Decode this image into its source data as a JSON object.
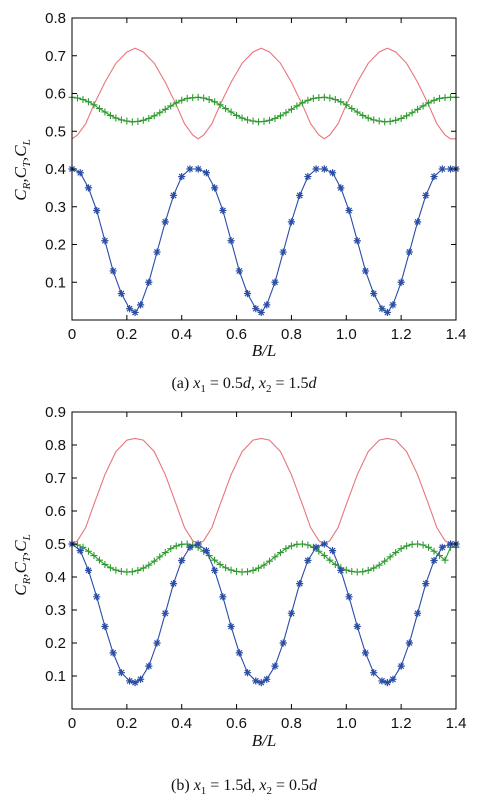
{
  "chart_data": [
    {
      "type": "line",
      "panel": "a",
      "caption": {
        "prefix": "(a) ",
        "x1": "x",
        "x1_sub": "1",
        "x1_val": " = 0.5",
        "x1_d": "d",
        "sep": ", ",
        "x2": "x",
        "x2_sub": "2",
        "x2_val": " = 1.5",
        "x2_d": "d"
      },
      "xlabel": "B/L",
      "ylabel": {
        "c1": "C",
        "s1": "R",
        "comma1": ",",
        "c2": "C",
        "s2": "T",
        "comma2": ",",
        "c3": "C",
        "s3": "L"
      },
      "xlim": [
        0,
        1.4
      ],
      "ylim": [
        0,
        0.8
      ],
      "xticks": [
        "0",
        "0.2",
        "0.4",
        "0.6",
        "0.8",
        "1.0",
        "1.2",
        "1.4"
      ],
      "xtick_values": [
        0,
        0.2,
        0.4,
        0.6,
        0.8,
        1.0,
        1.2,
        1.4
      ],
      "yticks": [
        "0.1",
        "0.2",
        "0.3",
        "0.4",
        "0.5",
        "0.6",
        "0.7",
        "0.8"
      ],
      "ytick_values": [
        0.1,
        0.2,
        0.3,
        0.4,
        0.5,
        0.6,
        0.7,
        0.8
      ],
      "period": 0.46,
      "series": [
        {
          "color": "#e8757a",
          "marker": "none",
          "x": [
            0,
            0.02,
            0.05,
            0.08,
            0.12,
            0.16,
            0.2,
            0.23,
            0.26,
            0.3,
            0.34,
            0.38,
            0.41,
            0.44,
            0.46,
            0.48,
            0.51,
            0.54,
            0.58,
            0.62,
            0.66,
            0.69,
            0.72,
            0.76,
            0.8,
            0.84,
            0.87,
            0.9,
            0.92,
            0.94,
            0.97,
            1.0,
            1.04,
            1.08,
            1.12,
            1.15,
            1.18,
            1.22,
            1.26,
            1.3,
            1.33,
            1.36,
            1.38,
            1.4
          ],
          "y": [
            0.48,
            0.49,
            0.52,
            0.57,
            0.63,
            0.68,
            0.71,
            0.72,
            0.71,
            0.68,
            0.63,
            0.57,
            0.52,
            0.49,
            0.48,
            0.49,
            0.52,
            0.57,
            0.63,
            0.68,
            0.71,
            0.72,
            0.71,
            0.68,
            0.63,
            0.57,
            0.52,
            0.49,
            0.48,
            0.49,
            0.52,
            0.57,
            0.63,
            0.68,
            0.71,
            0.72,
            0.71,
            0.68,
            0.63,
            0.57,
            0.52,
            0.49,
            0.48,
            0.48
          ]
        },
        {
          "color": "#2f9a2f",
          "marker": "plus",
          "x": [
            0,
            0.02,
            0.04,
            0.06,
            0.08,
            0.1,
            0.12,
            0.14,
            0.16,
            0.18,
            0.2,
            0.22,
            0.24,
            0.26,
            0.28,
            0.3,
            0.32,
            0.34,
            0.36,
            0.38,
            0.4,
            0.42,
            0.44,
            0.46,
            0.48,
            0.5,
            0.52,
            0.54,
            0.56,
            0.58,
            0.6,
            0.62,
            0.64,
            0.66,
            0.68,
            0.7,
            0.72,
            0.74,
            0.76,
            0.78,
            0.8,
            0.82,
            0.84,
            0.86,
            0.88,
            0.9,
            0.92,
            0.94,
            0.96,
            0.98,
            1.0,
            1.02,
            1.04,
            1.06,
            1.08,
            1.1,
            1.12,
            1.14,
            1.16,
            1.18,
            1.2,
            1.22,
            1.24,
            1.26,
            1.28,
            1.3,
            1.32,
            1.34,
            1.36,
            1.38,
            1.4
          ],
          "y": [
            0.59,
            0.588,
            0.584,
            0.578,
            0.57,
            0.56,
            0.551,
            0.542,
            0.535,
            0.53,
            0.527,
            0.525,
            0.526,
            0.529,
            0.534,
            0.541,
            0.549,
            0.558,
            0.567,
            0.575,
            0.582,
            0.587,
            0.589,
            0.59,
            0.588,
            0.584,
            0.578,
            0.57,
            0.56,
            0.551,
            0.542,
            0.535,
            0.53,
            0.527,
            0.525,
            0.526,
            0.529,
            0.534,
            0.541,
            0.549,
            0.558,
            0.567,
            0.575,
            0.582,
            0.587,
            0.589,
            0.59,
            0.588,
            0.584,
            0.578,
            0.57,
            0.56,
            0.551,
            0.542,
            0.535,
            0.53,
            0.527,
            0.525,
            0.526,
            0.529,
            0.534,
            0.541,
            0.549,
            0.558,
            0.567,
            0.575,
            0.582,
            0.587,
            0.589,
            0.59,
            0.59
          ]
        },
        {
          "color": "#2a4ea6",
          "marker": "star",
          "x": [
            0,
            0.03,
            0.06,
            0.09,
            0.12,
            0.15,
            0.18,
            0.21,
            0.23,
            0.25,
            0.28,
            0.31,
            0.34,
            0.37,
            0.4,
            0.43,
            0.46,
            0.49,
            0.52,
            0.55,
            0.58,
            0.61,
            0.64,
            0.67,
            0.69,
            0.71,
            0.74,
            0.77,
            0.8,
            0.83,
            0.86,
            0.89,
            0.92,
            0.95,
            0.98,
            1.01,
            1.04,
            1.07,
            1.1,
            1.13,
            1.15,
            1.17,
            1.2,
            1.23,
            1.26,
            1.29,
            1.32,
            1.35,
            1.38,
            1.4
          ],
          "y": [
            0.4,
            0.39,
            0.35,
            0.29,
            0.21,
            0.13,
            0.07,
            0.03,
            0.02,
            0.04,
            0.1,
            0.18,
            0.26,
            0.33,
            0.38,
            0.4,
            0.4,
            0.39,
            0.35,
            0.29,
            0.21,
            0.13,
            0.07,
            0.03,
            0.02,
            0.04,
            0.1,
            0.18,
            0.26,
            0.33,
            0.38,
            0.4,
            0.4,
            0.39,
            0.35,
            0.29,
            0.21,
            0.13,
            0.07,
            0.03,
            0.02,
            0.04,
            0.1,
            0.18,
            0.26,
            0.33,
            0.38,
            0.4,
            0.4,
            0.4
          ]
        }
      ]
    },
    {
      "type": "line",
      "panel": "b",
      "caption": {
        "prefix": "(b) ",
        "x1": "x",
        "x1_sub": "1",
        "x1_val": " = 1.5d",
        "x1_d": "",
        "sep": ", ",
        "x2": "x",
        "x2_sub": "2",
        "x2_val": " = 0.5",
        "x2_d": "d"
      },
      "xlabel": "B/L",
      "ylabel": {
        "c1": "C",
        "s1": "R",
        "comma1": ",",
        "c2": "C",
        "s2": "T",
        "comma2": ",",
        "c3": "C",
        "s3": "L"
      },
      "xlim": [
        0,
        1.4
      ],
      "ylim": [
        0,
        0.9
      ],
      "xticks": [
        "0",
        "0.2",
        "0.4",
        "0.6",
        "0.8",
        "1.0",
        "1.2",
        "1.4"
      ],
      "xtick_values": [
        0,
        0.2,
        0.4,
        0.6,
        0.8,
        1.0,
        1.2,
        1.4
      ],
      "yticks": [
        "0.1",
        "0.2",
        "0.3",
        "0.4",
        "0.5",
        "0.6",
        "0.7",
        "0.8",
        "0.9"
      ],
      "ytick_values": [
        0.1,
        0.2,
        0.3,
        0.4,
        0.5,
        0.6,
        0.7,
        0.8,
        0.9
      ],
      "series": [
        {
          "color": "#e8757a",
          "marker": "none",
          "x": [
            0,
            0.02,
            0.05,
            0.08,
            0.12,
            0.16,
            0.2,
            0.23,
            0.26,
            0.3,
            0.34,
            0.38,
            0.41,
            0.44,
            0.46,
            0.48,
            0.51,
            0.54,
            0.58,
            0.62,
            0.66,
            0.69,
            0.72,
            0.76,
            0.8,
            0.84,
            0.87,
            0.9,
            0.92,
            0.94,
            0.97,
            1.0,
            1.04,
            1.08,
            1.12,
            1.15,
            1.18,
            1.22,
            1.26,
            1.3,
            1.33,
            1.36,
            1.38,
            1.4
          ],
          "y": [
            0.5,
            0.51,
            0.55,
            0.62,
            0.71,
            0.78,
            0.815,
            0.82,
            0.815,
            0.78,
            0.71,
            0.62,
            0.55,
            0.51,
            0.5,
            0.51,
            0.55,
            0.62,
            0.71,
            0.78,
            0.815,
            0.82,
            0.815,
            0.78,
            0.71,
            0.62,
            0.55,
            0.51,
            0.5,
            0.51,
            0.55,
            0.62,
            0.71,
            0.78,
            0.815,
            0.82,
            0.815,
            0.78,
            0.71,
            0.62,
            0.55,
            0.51,
            0.5,
            0.5
          ]
        },
        {
          "color": "#2f9a2f",
          "marker": "plus",
          "x": [
            0,
            0.02,
            0.04,
            0.06,
            0.08,
            0.1,
            0.12,
            0.14,
            0.16,
            0.18,
            0.2,
            0.22,
            0.24,
            0.26,
            0.28,
            0.3,
            0.32,
            0.34,
            0.36,
            0.38,
            0.4,
            0.42,
            0.44,
            0.46,
            0.48,
            0.5,
            0.52,
            0.54,
            0.56,
            0.58,
            0.6,
            0.62,
            0.64,
            0.66,
            0.68,
            0.7,
            0.72,
            0.74,
            0.76,
            0.78,
            0.8,
            0.82,
            0.84,
            0.86,
            0.88,
            0.9,
            0.92,
            0.94,
            0.96,
            0.98,
            1.0,
            1.02,
            1.04,
            1.06,
            1.08,
            1.1,
            1.12,
            1.14,
            1.16,
            1.18,
            1.2,
            1.22,
            1.24,
            1.26,
            1.28,
            1.3,
            1.32,
            1.34,
            1.36,
            1.38,
            1.4
          ],
          "y": [
            0.5,
            0.497,
            0.49,
            0.478,
            0.465,
            0.451,
            0.438,
            0.428,
            0.421,
            0.417,
            0.415,
            0.416,
            0.42,
            0.427,
            0.436,
            0.448,
            0.461,
            0.474,
            0.486,
            0.494,
            0.499,
            0.5,
            0.497,
            0.49,
            0.478,
            0.465,
            0.451,
            0.438,
            0.428,
            0.421,
            0.417,
            0.415,
            0.416,
            0.42,
            0.427,
            0.436,
            0.448,
            0.461,
            0.474,
            0.486,
            0.494,
            0.499,
            0.5,
            0.497,
            0.49,
            0.478,
            0.465,
            0.451,
            0.438,
            0.428,
            0.421,
            0.417,
            0.415,
            0.416,
            0.42,
            0.427,
            0.436,
            0.448,
            0.461,
            0.474,
            0.486,
            0.494,
            0.499,
            0.5,
            0.497,
            0.49,
            0.478,
            0.465,
            0.451,
            0.49,
            0.49
          ]
        },
        {
          "color": "#2a4ea6",
          "marker": "star",
          "x": [
            0,
            0.03,
            0.06,
            0.09,
            0.12,
            0.15,
            0.18,
            0.21,
            0.23,
            0.25,
            0.28,
            0.31,
            0.34,
            0.37,
            0.4,
            0.43,
            0.46,
            0.49,
            0.52,
            0.55,
            0.58,
            0.61,
            0.64,
            0.67,
            0.69,
            0.71,
            0.74,
            0.77,
            0.8,
            0.83,
            0.86,
            0.89,
            0.92,
            0.95,
            0.98,
            1.01,
            1.04,
            1.07,
            1.1,
            1.13,
            1.15,
            1.17,
            1.2,
            1.23,
            1.26,
            1.29,
            1.32,
            1.35,
            1.38,
            1.4
          ],
          "y": [
            0.5,
            0.48,
            0.42,
            0.34,
            0.25,
            0.17,
            0.11,
            0.085,
            0.08,
            0.09,
            0.13,
            0.2,
            0.29,
            0.38,
            0.45,
            0.49,
            0.5,
            0.48,
            0.42,
            0.34,
            0.25,
            0.17,
            0.11,
            0.085,
            0.08,
            0.09,
            0.13,
            0.2,
            0.29,
            0.38,
            0.45,
            0.49,
            0.5,
            0.48,
            0.42,
            0.34,
            0.25,
            0.17,
            0.11,
            0.085,
            0.08,
            0.09,
            0.13,
            0.2,
            0.29,
            0.38,
            0.45,
            0.49,
            0.5,
            0.5
          ]
        }
      ]
    }
  ]
}
